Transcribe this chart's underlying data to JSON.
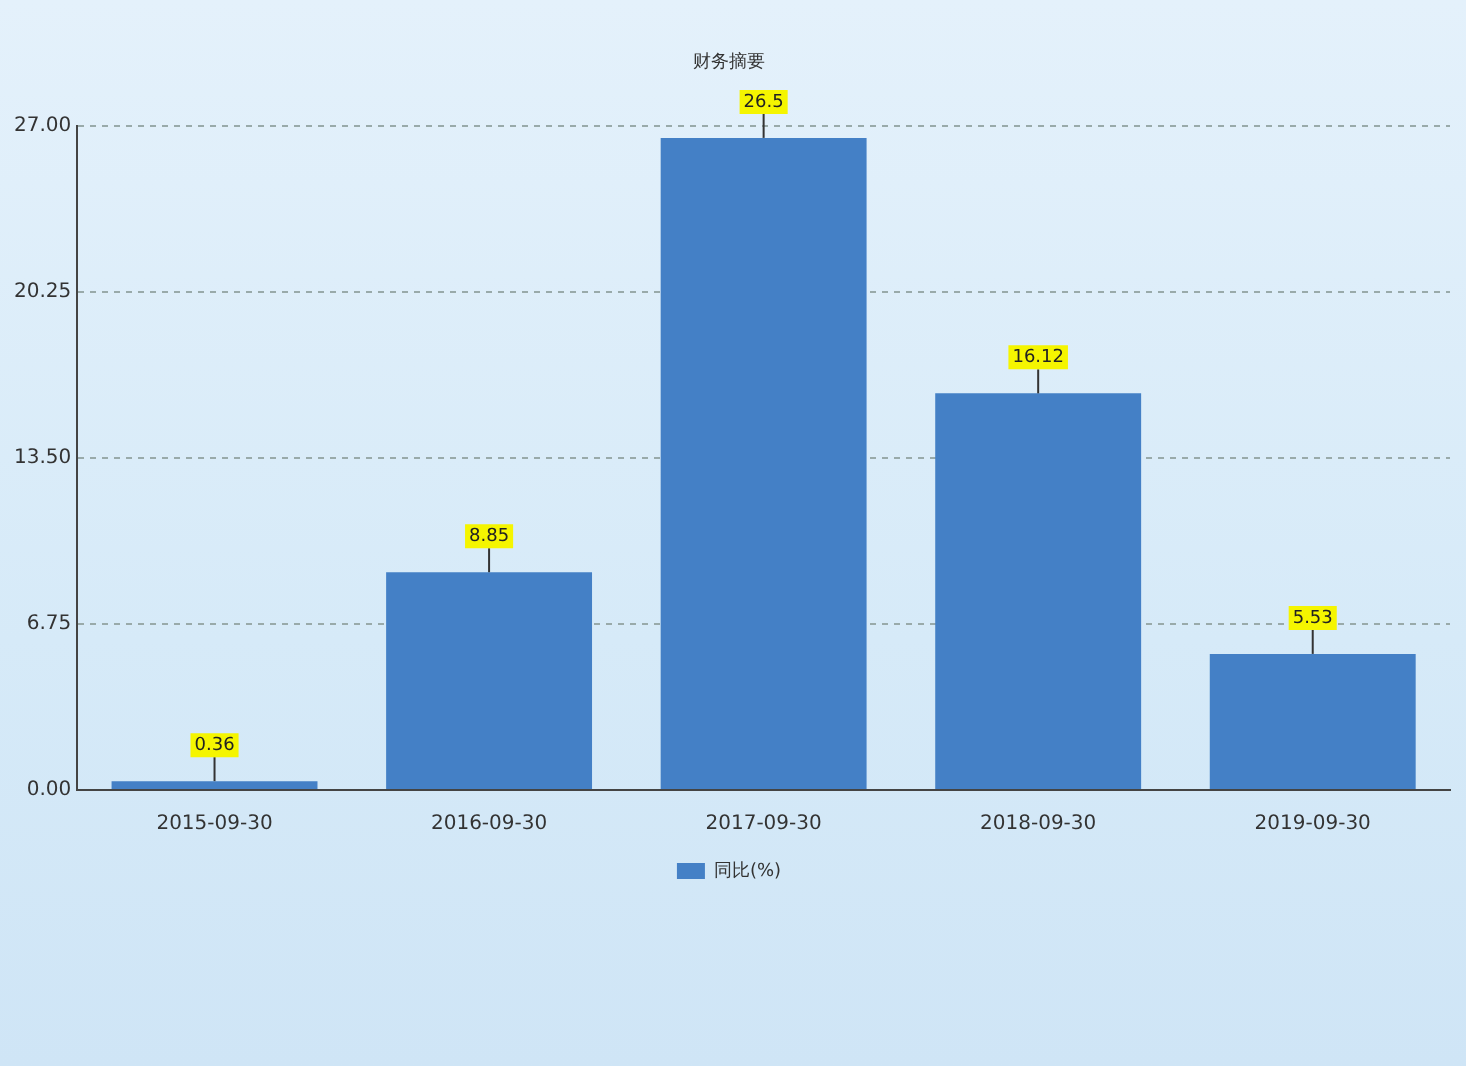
{
  "chart_data": {
    "type": "bar",
    "title": "财务摘要",
    "categories": [
      "2015-09-30",
      "2016-09-30",
      "2017-09-30",
      "2018-09-30",
      "2019-09-30"
    ],
    "series": [
      {
        "name": "同比(%)",
        "color": "#4480c6",
        "values": [
          0.36,
          8.85,
          26.5,
          16.12,
          5.53
        ]
      }
    ],
    "ylim": [
      0,
      27
    ],
    "yticks": [
      {
        "value": 0,
        "label": "0.00"
      },
      {
        "value": 6.75,
        "label": "6.75"
      },
      {
        "value": 13.5,
        "label": "13.50"
      },
      {
        "value": 20.25,
        "label": "20.25"
      },
      {
        "value": 27,
        "label": "27.00"
      }
    ],
    "grid": "y",
    "legend": "bottom",
    "data_labels": true
  }
}
